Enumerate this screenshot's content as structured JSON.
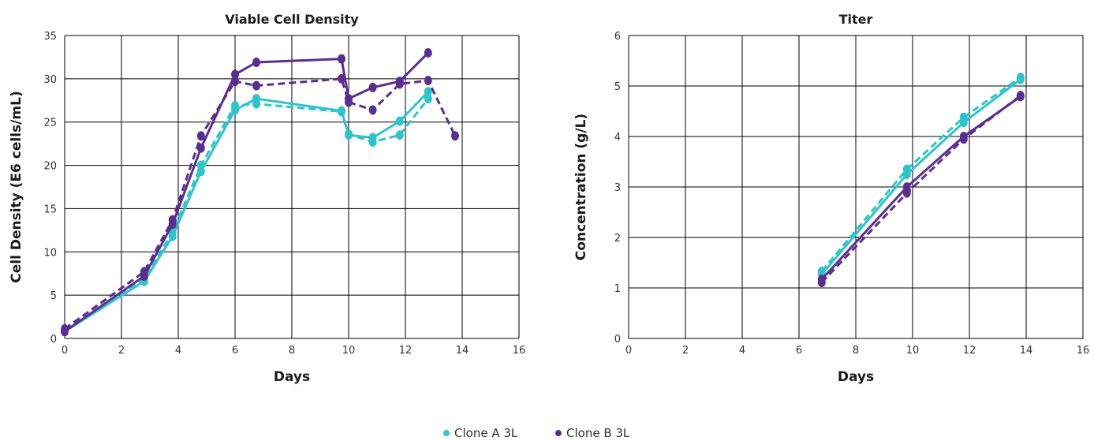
{
  "legend": [
    {
      "label": "Clone A 3L",
      "color": "#2EC4CC"
    },
    {
      "label": "Clone B 3L",
      "color": "#5A2D91"
    }
  ],
  "chart_data": [
    {
      "type": "line",
      "title": "Viable Cell Density",
      "xlabel": "Days",
      "ylabel": "Cell Density (E6 cells/mL)",
      "xlim": [
        0,
        16
      ],
      "ylim": [
        0,
        35
      ],
      "xticks": [
        0,
        2,
        4,
        6,
        8,
        10,
        12,
        14,
        16
      ],
      "yticks": [
        0,
        5,
        10,
        15,
        20,
        25,
        30,
        35
      ],
      "grid": true,
      "legend_position": "bottom-center",
      "series": [
        {
          "clone": 0,
          "dashed": false,
          "color": "#2EC4CC",
          "x": [
            0,
            2.8,
            3.8,
            4.8,
            6.0,
            6.75,
            9.75,
            10.0,
            10.85,
            11.8,
            12.8
          ],
          "y": [
            0.8,
            6.6,
            11.8,
            19.3,
            26.4,
            27.7,
            26.3,
            23.5,
            23.2,
            25.1,
            28.5
          ]
        },
        {
          "clone": 0,
          "dashed": true,
          "color": "#2EC4CC",
          "x": [
            0,
            2.8,
            3.8,
            4.8,
            6.0,
            6.75,
            9.75,
            10.0,
            10.85,
            11.8,
            12.8
          ],
          "y": [
            0.9,
            6.9,
            12.3,
            20.0,
            26.9,
            27.1,
            26.2,
            23.6,
            22.7,
            23.5,
            27.7
          ]
        },
        {
          "clone": 1,
          "dashed": false,
          "color": "#5A2D91",
          "x": [
            0,
            2.8,
            3.8,
            4.8,
            6.0,
            6.75,
            9.75,
            10.0,
            10.85,
            11.8,
            12.8
          ],
          "y": [
            0.8,
            7.2,
            13.2,
            22.0,
            30.5,
            31.9,
            32.3,
            27.7,
            29.0,
            29.7,
            33.0
          ]
        },
        {
          "clone": 1,
          "dashed": true,
          "color": "#5A2D91",
          "x": [
            0,
            2.8,
            3.8,
            4.8,
            6.0,
            6.75,
            9.75,
            10.0,
            10.85,
            11.8,
            12.8,
            13.75
          ],
          "y": [
            1.1,
            7.7,
            13.7,
            23.4,
            29.7,
            29.2,
            30.0,
            27.3,
            26.4,
            29.4,
            29.8,
            23.4
          ]
        }
      ]
    },
    {
      "type": "line",
      "title": "Titer",
      "xlabel": "Days",
      "ylabel": "Concentration (g/L)",
      "xlim": [
        0,
        16
      ],
      "ylim": [
        0,
        6
      ],
      "xticks": [
        0,
        2,
        4,
        6,
        8,
        10,
        12,
        14,
        16
      ],
      "yticks": [
        0,
        1,
        2,
        3,
        4,
        5,
        6
      ],
      "grid": true,
      "legend_position": "bottom-center",
      "series": [
        {
          "clone": 0,
          "dashed": false,
          "color": "#2EC4CC",
          "x": [
            6.8,
            9.8,
            11.8,
            13.8
          ],
          "y": [
            1.27,
            3.25,
            4.28,
            5.13
          ]
        },
        {
          "clone": 0,
          "dashed": true,
          "color": "#2EC4CC",
          "x": [
            6.8,
            9.8,
            11.8,
            13.8
          ],
          "y": [
            1.33,
            3.35,
            4.38,
            5.17
          ]
        },
        {
          "clone": 1,
          "dashed": false,
          "color": "#5A2D91",
          "x": [
            6.8,
            9.8,
            11.8,
            13.8
          ],
          "y": [
            1.17,
            3.0,
            4.0,
            4.79
          ]
        },
        {
          "clone": 1,
          "dashed": true,
          "color": "#5A2D91",
          "x": [
            6.8,
            9.8,
            11.8,
            13.8
          ],
          "y": [
            1.11,
            2.88,
            3.95,
            4.81
          ]
        }
      ]
    }
  ]
}
